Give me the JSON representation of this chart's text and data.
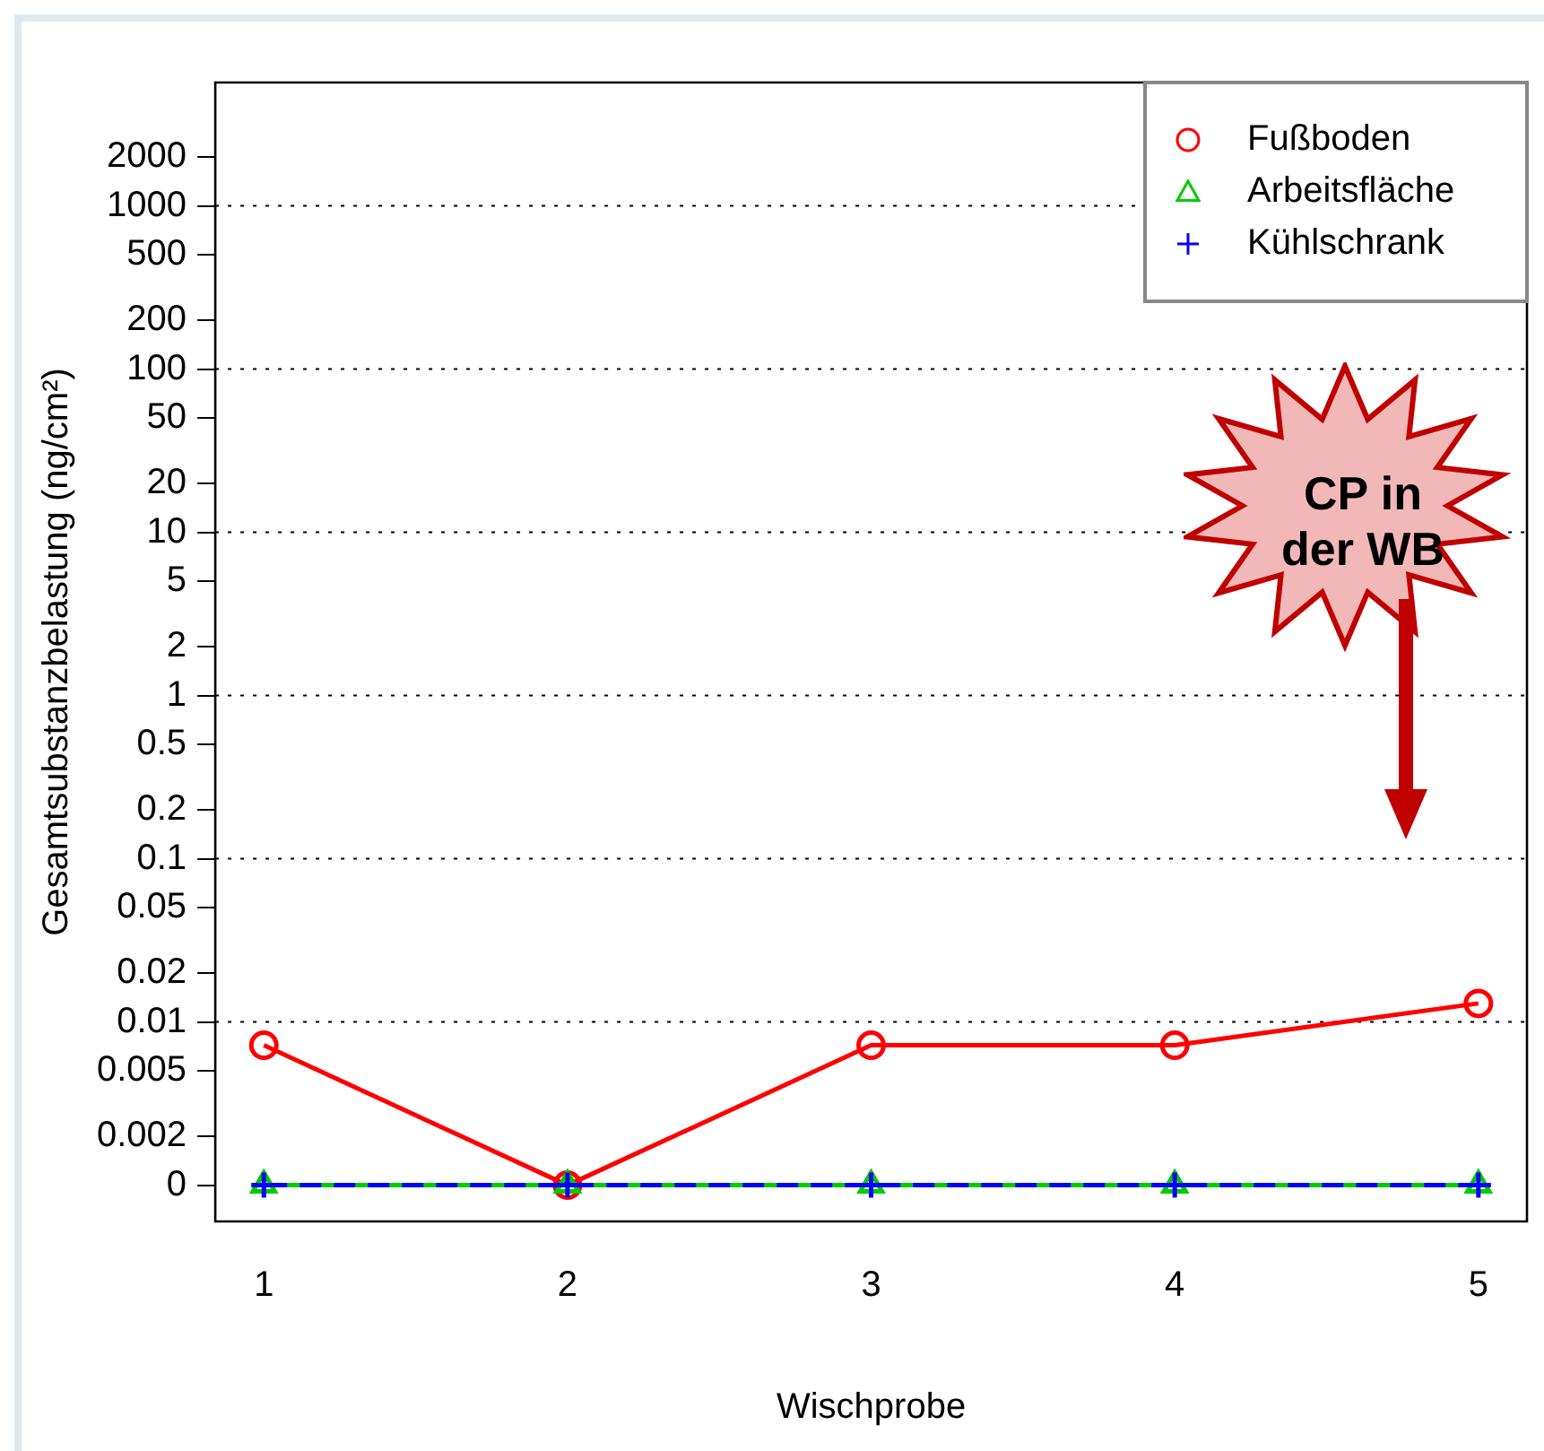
{
  "chart_data": {
    "type": "line",
    "xlabel": "Wischprobe",
    "ylabel": "Gesamtsubstanzbelastung (ng/cm²)",
    "x": [
      1,
      2,
      3,
      4,
      5
    ],
    "xlim": [
      0.84,
      5.16
    ],
    "xticks": [
      1,
      2,
      3,
      4,
      5
    ],
    "log": "y",
    "ylim": [
      0.0006,
      5700
    ],
    "yticks": [
      {
        "value": 0.001,
        "label": "0"
      },
      0.002,
      0.005,
      0.01,
      0.02,
      0.05,
      0.1,
      0.2,
      0.5,
      1,
      2,
      5,
      10,
      20,
      50,
      100,
      200,
      500,
      1000,
      2000
    ],
    "series": [
      {
        "name": "Fußboden",
        "color": "#ff0000",
        "values": [
          0.0072,
          0.001,
          0.0072,
          0.0072,
          0.013
        ],
        "marker": "circle",
        "line_style": "solid"
      },
      {
        "name": "Arbeitsfläche",
        "color": "#00cc00",
        "values": [
          0.001,
          0.001,
          0.001,
          0.001,
          0.001
        ],
        "marker": "triangle",
        "line_style": "dashed"
      },
      {
        "name": "Kühlschrank",
        "color": "#0000ff",
        "values": [
          0.001,
          0.001,
          0.001,
          0.001,
          0.001
        ],
        "marker": "cross",
        "line_style": "dashed"
      }
    ],
    "ref_lines": [
      {
        "axis": "y",
        "value": 0.01,
        "line_style": "dotted"
      },
      {
        "axis": "y",
        "value": 0.1,
        "line_style": "dotted"
      },
      {
        "axis": "y",
        "value": 1,
        "line_style": "dotted"
      },
      {
        "axis": "y",
        "value": 10,
        "line_style": "dotted"
      },
      {
        "axis": "y",
        "value": 100,
        "line_style": "dotted"
      },
      {
        "axis": "y",
        "value": 1000,
        "line_style": "dotted"
      }
    ],
    "legend": "top right",
    "annotations": [
      "CP in der WB"
    ]
  }
}
